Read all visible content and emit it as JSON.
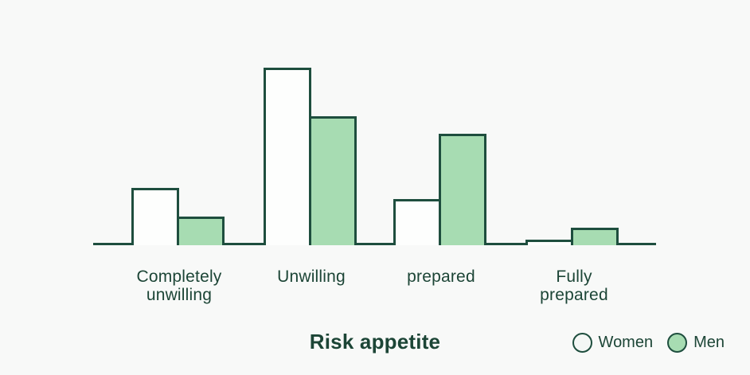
{
  "page": {
    "background": "#f8f9f8"
  },
  "colors": {
    "outline": "#1e4e3e",
    "text": "#1c4536",
    "axis": "#1e4e3e",
    "women_fill": "#fdfefd",
    "men_fill": "#a7dcb2",
    "legend_women_fill": "#f4f7f5"
  },
  "chart_data": {
    "type": "bar",
    "title": "Risk appetite",
    "categories": [
      "Completely unwilling",
      "Unwilling",
      "prepared",
      "Fully prepared"
    ],
    "category_label_lines": [
      [
        "Completely",
        "unwilling"
      ],
      [
        "Unwilling"
      ],
      [
        "prepared"
      ],
      [
        "Fully",
        "prepared"
      ]
    ],
    "series": [
      {
        "name": "Women",
        "values": [
          20,
          62,
          16,
          2
        ]
      },
      {
        "name": "Men",
        "values": [
          10,
          45,
          39,
          6
        ]
      }
    ],
    "values_estimated": true,
    "ylim": [
      0,
      70
    ],
    "grid": false,
    "y_axis_visible": false,
    "legend_position": "bottom-right",
    "legend": [
      "Women",
      "Men"
    ]
  }
}
